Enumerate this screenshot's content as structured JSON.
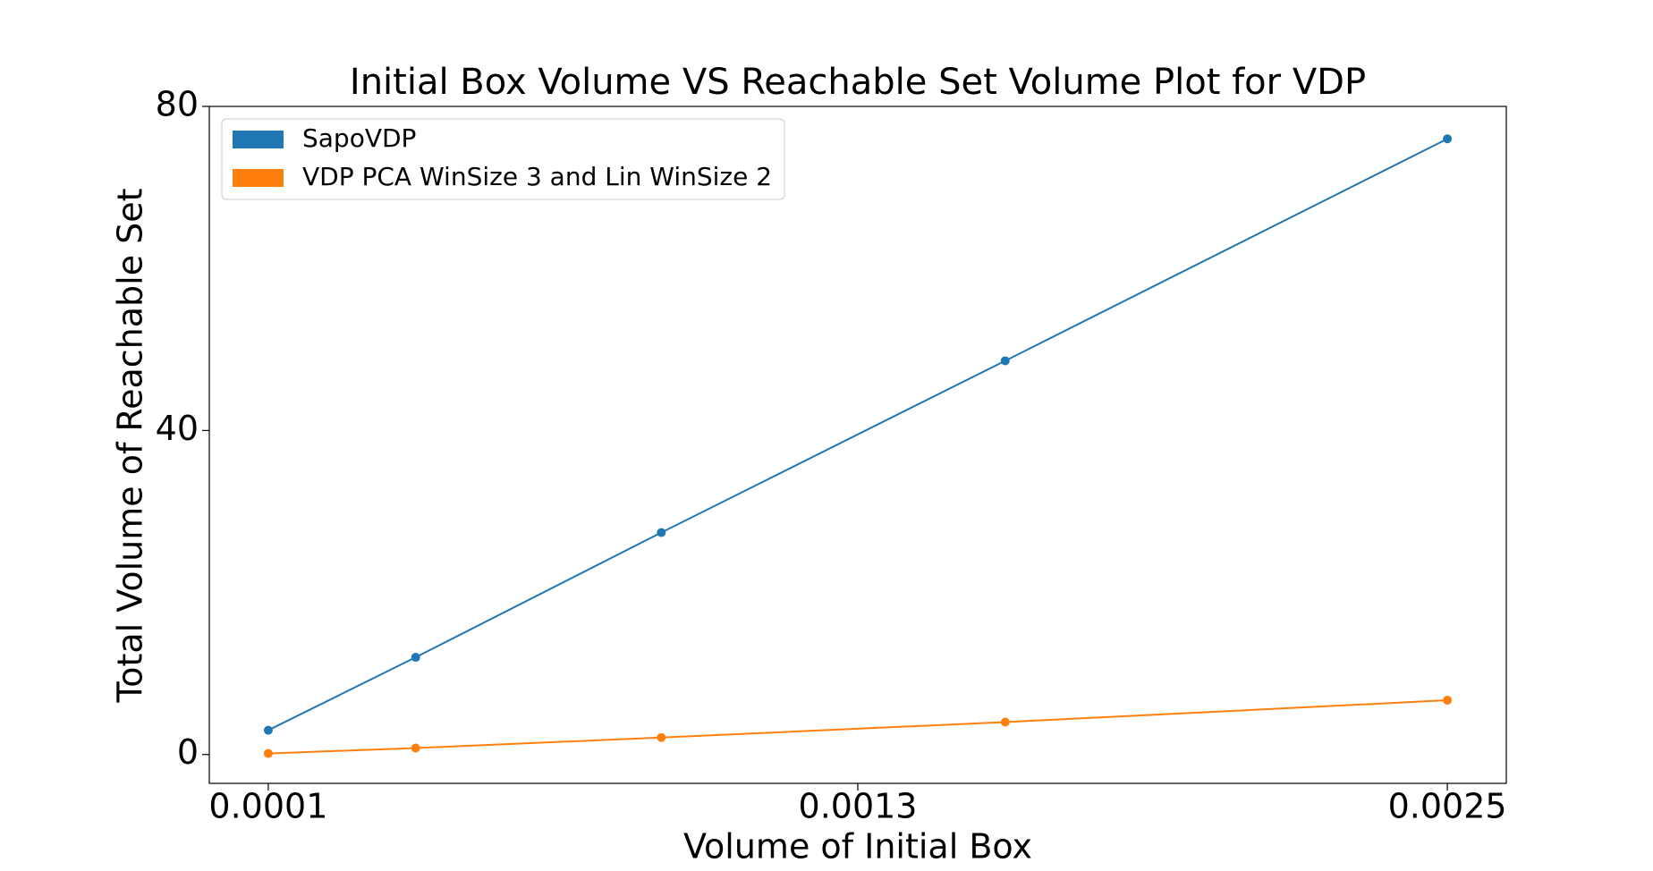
{
  "chart_data": {
    "type": "line",
    "title": "Initial Box Volume VS Reachable Set Volume Plot for VDP",
    "xlabel": "Volume of Initial Box",
    "ylabel": "Total Volume of Reachable Set",
    "x": [
      0.0001,
      0.0004,
      0.0009,
      0.0016,
      0.0025
    ],
    "series": [
      {
        "name": "SapoVDP",
        "color": "#1f77b4",
        "values": [
          3.0,
          12.0,
          27.4,
          48.6,
          76.0
        ]
      },
      {
        "name": "VDP PCA WinSize 3 and Lin WinSize 2",
        "color": "#ff7f0e",
        "values": [
          0.13,
          0.8,
          2.1,
          4.0,
          6.7
        ]
      }
    ],
    "xlim": [
      -2e-05,
      0.00262
    ],
    "xticks": [
      0.0001,
      0.0013,
      0.0025
    ],
    "ylim": [
      -3.56,
      80
    ],
    "yticks": [
      0,
      40,
      80
    ],
    "legend": "upper left",
    "grid": false
  }
}
